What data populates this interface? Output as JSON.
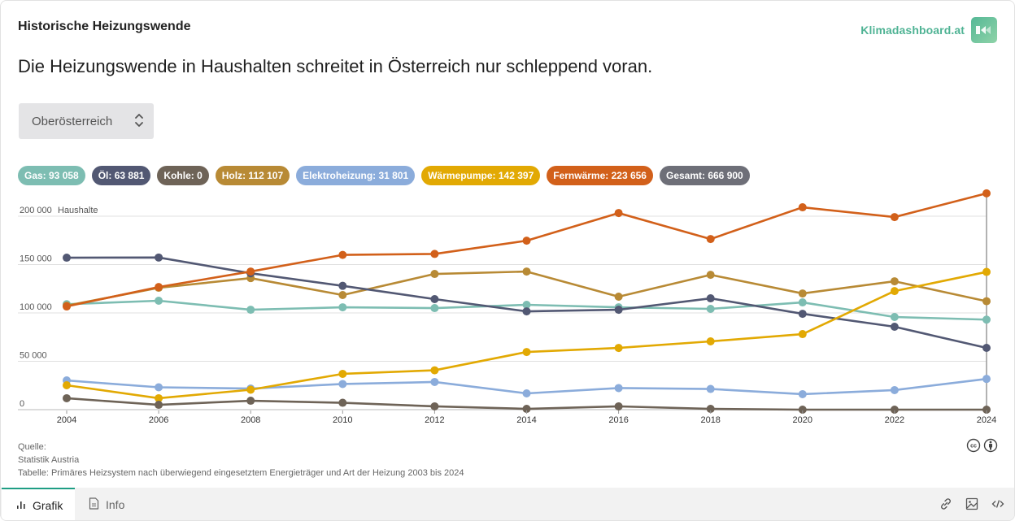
{
  "header": {
    "kicker": "Historische Heizungswende",
    "brand": "Klimadashboard.at",
    "headline": "Die Heizungswende in Haushalten schreitet in Österreich nur schleppend voran."
  },
  "region_select": {
    "value": "Oberösterreich"
  },
  "legend": [
    {
      "label": "Gas: 93 058",
      "color": "#7dbdb2"
    },
    {
      "label": "Öl: 63 881",
      "color": "#525873"
    },
    {
      "label": "Kohle: 0",
      "color": "#6e6357"
    },
    {
      "label": "Holz: 112 107",
      "color": "#b88a35"
    },
    {
      "label": "Elektroheizung: 31 801",
      "color": "#8bacdb"
    },
    {
      "label": "Wärmepumpe: 142 397",
      "color": "#e2a903"
    },
    {
      "label": "Fernwärme: 223 656",
      "color": "#d2601a"
    },
    {
      "label": "Gesamt: 666 900",
      "color": "#6e6f78"
    }
  ],
  "chart_data": {
    "type": "line",
    "title": "Historische Heizungswende",
    "xlabel": "",
    "ylabel": "Haushalte",
    "x": [
      2004,
      2006,
      2008,
      2010,
      2012,
      2014,
      2016,
      2018,
      2020,
      2022,
      2024
    ],
    "x_tick_labels": [
      "2004",
      "2006",
      "2008",
      "2010",
      "2012",
      "2014",
      "2016",
      "2018",
      "2020",
      "2022",
      "2024"
    ],
    "y_ticks": [
      0,
      50000,
      100000,
      150000,
      200000
    ],
    "y_tick_labels": [
      "0",
      "50 000",
      "100 000",
      "150 000",
      "200 000"
    ],
    "y_unit_label": "Haushalte",
    "ylim": [
      0,
      200000
    ],
    "grid": true,
    "legend_position": "top",
    "highlight_x": 2024,
    "series": [
      {
        "name": "Gas",
        "color": "#7dbdb2",
        "values": [
          109000,
          112600,
          103300,
          105800,
          105000,
          108400,
          105800,
          104200,
          110900,
          95800,
          93058
        ]
      },
      {
        "name": "Öl",
        "color": "#525873",
        "values": [
          157100,
          157300,
          141000,
          128000,
          114300,
          101600,
          103300,
          115100,
          99100,
          85700,
          63881
        ]
      },
      {
        "name": "Kohle",
        "color": "#6e6357",
        "values": [
          11800,
          5000,
          9200,
          7100,
          3400,
          800,
          3400,
          800,
          0,
          0,
          0
        ]
      },
      {
        "name": "Holz",
        "color": "#b88a35",
        "values": [
          107500,
          126000,
          136000,
          118500,
          140300,
          142800,
          116800,
          139400,
          120100,
          132700,
          112107
        ]
      },
      {
        "name": "Elektroheizung",
        "color": "#8bacdb",
        "values": [
          30200,
          23100,
          21800,
          26500,
          28600,
          16800,
          22300,
          21400,
          16000,
          20200,
          31801
        ]
      },
      {
        "name": "Wärmepumpe",
        "color": "#e2a903",
        "values": [
          25200,
          11800,
          20600,
          37000,
          40700,
          59600,
          63800,
          70600,
          78100,
          122600,
          142397
        ]
      },
      {
        "name": "Fernwärme",
        "color": "#d2601a",
        "values": [
          106700,
          126800,
          142800,
          160000,
          161000,
          174700,
          203300,
          176400,
          209200,
          199100,
          223656
        ]
      }
    ]
  },
  "source": {
    "label": "Quelle:",
    "org": "Statistik Austria",
    "table": "Tabelle: Primäres Heizsystem nach überwiegend eingesetztem Energieträger und Art der Heizung 2003 bis 2024"
  },
  "footer": {
    "tabs": [
      {
        "label": "Grafik"
      },
      {
        "label": "Info"
      }
    ]
  }
}
